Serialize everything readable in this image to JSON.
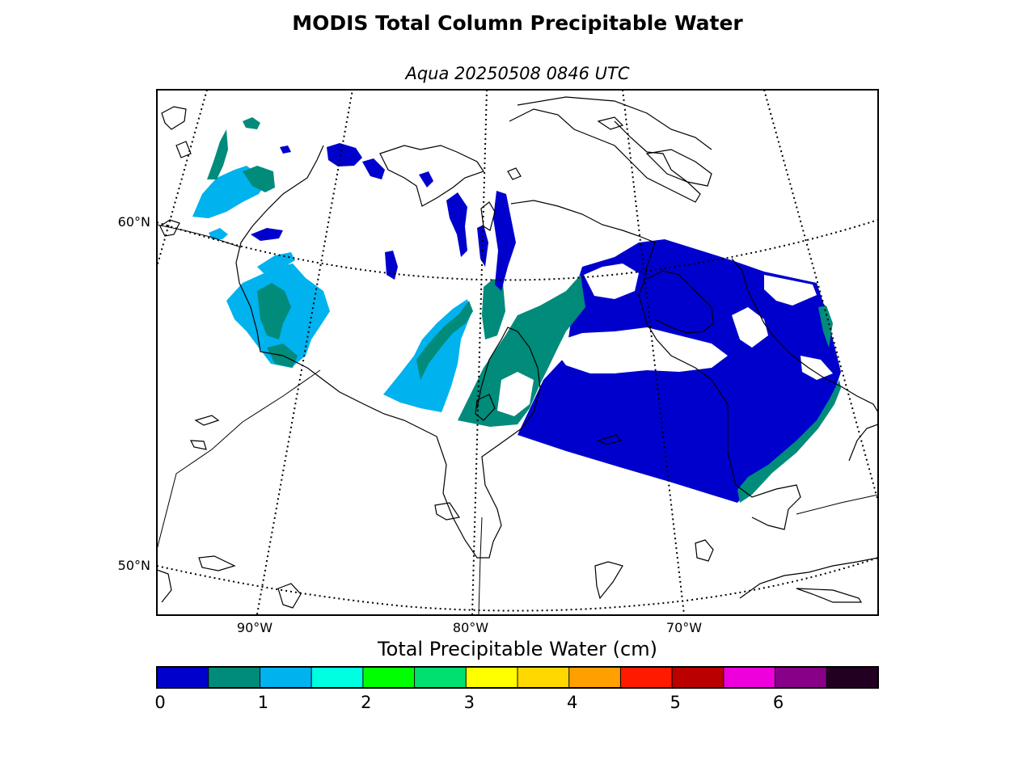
{
  "figure": {
    "title": "MODIS Total Column Precipitable Water",
    "subtitle": "Aqua 20250508 0846 UTC"
  },
  "map": {
    "projection": "polar-stereographic",
    "latitude_labels": [
      "60°N",
      "50°N"
    ],
    "longitude_labels": [
      "90°W",
      "80°W",
      "70°W"
    ],
    "graticule_style": "dotted",
    "coastline_color": "#000000"
  },
  "colorbar": {
    "label": "Total Precipitable Water (cm)",
    "min": 0,
    "max": 7,
    "step": 0.5,
    "tick_labels": [
      "0",
      "1",
      "2",
      "3",
      "4",
      "5",
      "6"
    ],
    "colors": [
      "#0000cd",
      "#008b7a",
      "#00b2ee",
      "#00ffe0",
      "#00ff00",
      "#00e070",
      "#ffff00",
      "#ffd800",
      "#ffa000",
      "#ff1a00",
      "#bb0000",
      "#ee00dd",
      "#880088",
      "#220022"
    ]
  },
  "precip_colors": {
    "deep_blue": "#0000cd",
    "teal": "#008b7a",
    "light_blue": "#00b2ee"
  }
}
